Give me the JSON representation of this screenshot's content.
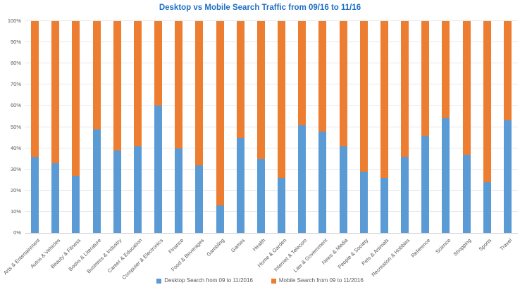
{
  "chart_data": {
    "type": "bar",
    "stacked": true,
    "percent_stacked": true,
    "title": "Desktop vs Mobile Search Traffic from 09/16 to 11/16",
    "title_color": "#1f6fc5",
    "categories": [
      "Arts & Entertainment",
      "Autos & Vehicles",
      "Beauty & Fitness",
      "Books & Literature",
      "Business & Industry",
      "Career & Education",
      "Computer & Electronics",
      "Finance",
      "Food & Beverages",
      "Gambling",
      "Games",
      "Health",
      "Home & Garden",
      "Internet & Telecom",
      "Law & Government",
      "News & Media",
      "People & Society",
      "Pets & Animals",
      "Recreation & Hobbies",
      "Reference",
      "Science",
      "Shopping",
      "Sports",
      "Travel"
    ],
    "series": [
      {
        "name": "Desktop Search from 09 to 11/2016",
        "color": "#5b9bd5",
        "values": [
          36,
          33,
          27,
          49,
          39,
          41,
          60,
          40,
          32,
          13,
          45,
          35,
          26,
          51,
          48,
          41,
          29,
          26,
          36,
          46,
          54,
          37,
          24,
          53
        ]
      },
      {
        "name": "Mobile Search from 09 to 11/2016",
        "color": "#ed7d31",
        "values": [
          64,
          67,
          73,
          51,
          61,
          59,
          40,
          60,
          68,
          87,
          55,
          65,
          74,
          49,
          52,
          59,
          71,
          74,
          64,
          54,
          46,
          63,
          76,
          47
        ]
      }
    ],
    "xlabel": "",
    "ylabel": "",
    "ylim": [
      0,
      100
    ],
    "ytick_step": 10,
    "ytick_format": "percent",
    "grid": true,
    "legend_position": "bottom",
    "axis_text_color": "#595959",
    "gridline_color": "#e8e8e8"
  }
}
